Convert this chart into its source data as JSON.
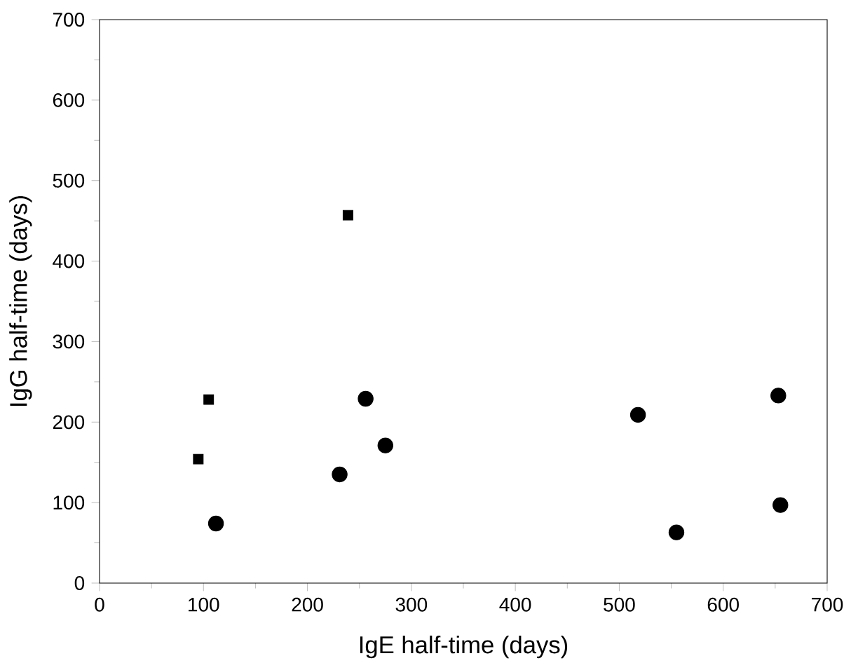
{
  "chart_data": {
    "type": "scatter",
    "xlabel": "IgE half-time (days)",
    "ylabel": "IgG half-time (days)",
    "xlim": [
      0,
      700
    ],
    "ylim": [
      0,
      700
    ],
    "xticks": [
      0,
      100,
      200,
      300,
      400,
      500,
      600,
      700
    ],
    "yticks": [
      0,
      100,
      200,
      300,
      400,
      500,
      600,
      700
    ],
    "grid": false,
    "series": [
      {
        "color": "#000000",
        "marker": "square",
        "x": [
          95,
          105,
          239
        ],
        "values": [
          154,
          228,
          457
        ]
      },
      {
        "color": "#000000",
        "marker": "circle",
        "x": [
          112,
          231,
          256,
          275,
          518,
          555,
          653,
          655
        ],
        "values": [
          74,
          135,
          229,
          171,
          209,
          63,
          233,
          97
        ]
      }
    ]
  }
}
